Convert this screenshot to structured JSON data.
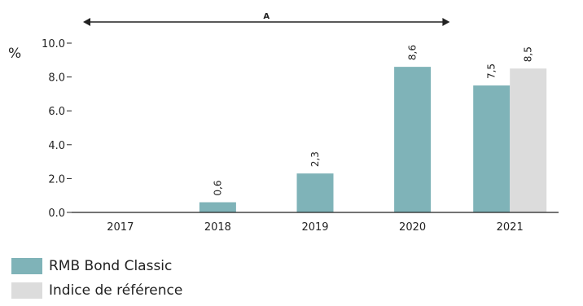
{
  "chart_data": {
    "type": "bar",
    "ylabel": "%",
    "ylim": [
      0,
      10
    ],
    "yticks": [
      "0.0",
      "2.0",
      "4.0",
      "6.0",
      "8.0",
      "10.0"
    ],
    "categories": [
      "2017",
      "2018",
      "2019",
      "2020",
      "2021"
    ],
    "series": [
      {
        "name": "RMB Bond Classic",
        "color": "#7fb3b8",
        "values": [
          null,
          0.6,
          2.3,
          8.6,
          7.5
        ],
        "labels": [
          "",
          "0,6",
          "2,3",
          "8,6",
          "7,5"
        ]
      },
      {
        "name": "Indice de référence",
        "color": "#dcdcdc",
        "values": [
          null,
          null,
          null,
          null,
          8.5
        ],
        "labels": [
          "",
          "",
          "",
          "",
          "8,5"
        ]
      }
    ],
    "annotation": {
      "label": "A",
      "from_category": "2017",
      "to_category": "2020"
    },
    "legend_position": "bottom-left",
    "grid": false
  }
}
